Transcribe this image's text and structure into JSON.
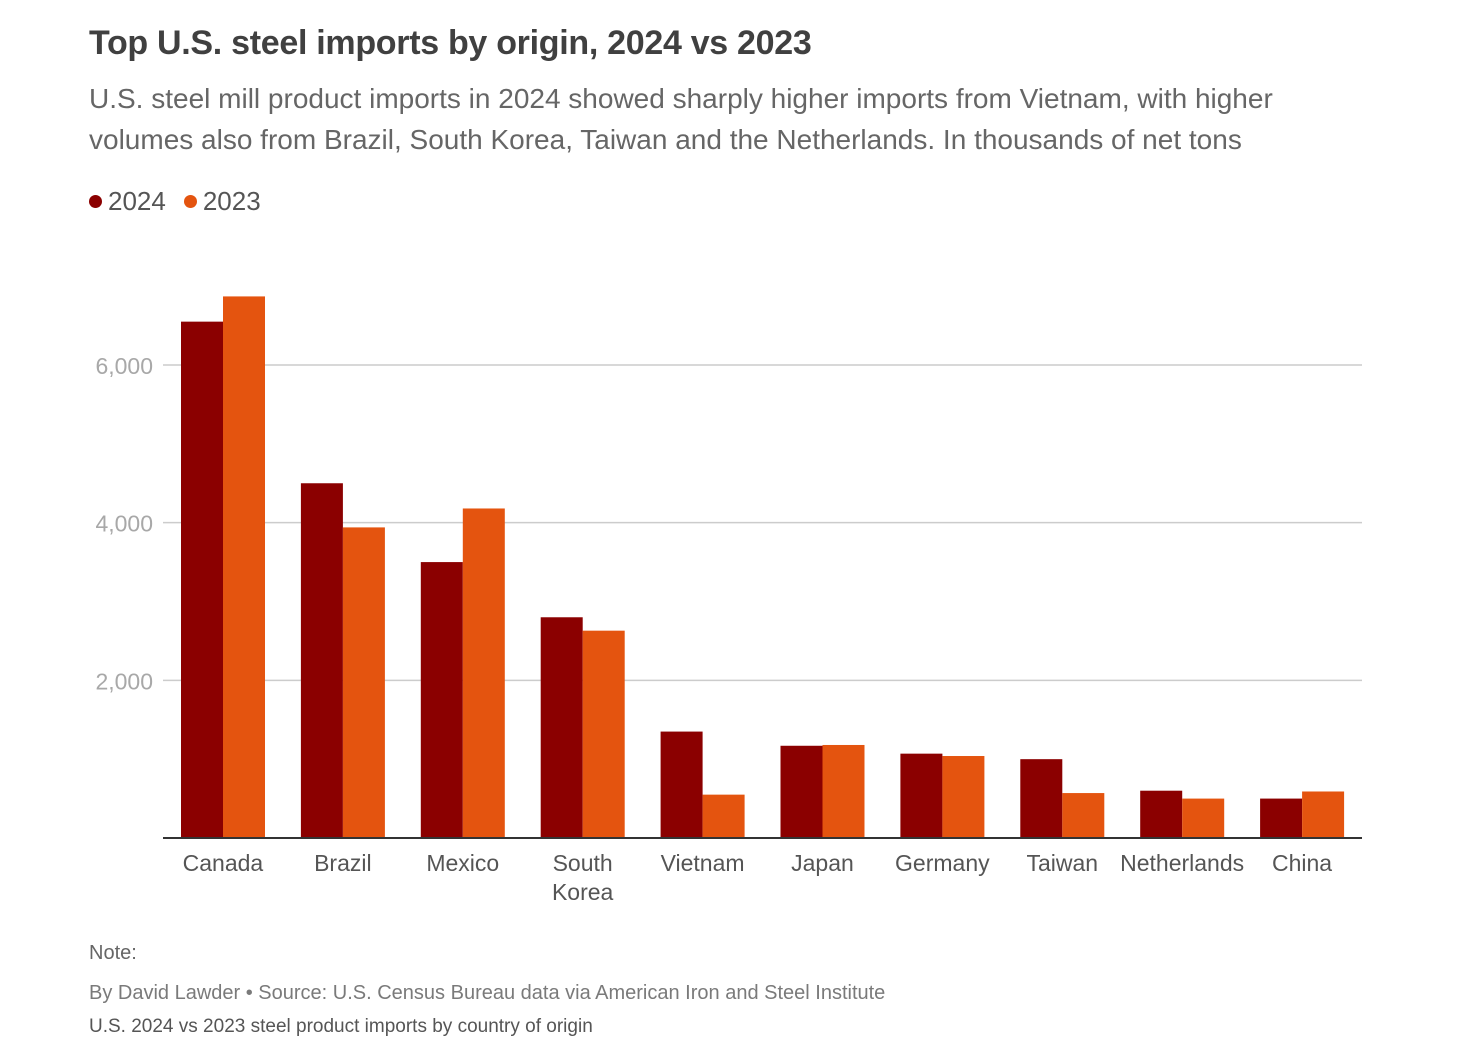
{
  "title": "Top U.S. steel imports by origin, 2024 vs 2023",
  "subtitle": "U.S. steel mill product imports in 2024 showed sharply higher imports from Vietnam, with higher volumes also from Brazil, South Korea, Taiwan and the Netherlands. In thousands of net tons",
  "legend": [
    {
      "label": "2024",
      "color": "#8b0000"
    },
    {
      "label": "2023",
      "color": "#e4540f"
    }
  ],
  "note": "Note:",
  "credit": "By David Lawder • Source: U.S. Census Bureau data via American Iron and Steel Institute",
  "caption": "U.S. 2024 vs 2023 steel product imports by country of origin",
  "chart_data": {
    "type": "bar",
    "categories": [
      [
        "Canada"
      ],
      [
        "Brazil"
      ],
      [
        "Mexico"
      ],
      [
        "South",
        "Korea"
      ],
      [
        "Vietnam"
      ],
      [
        "Japan"
      ],
      [
        "Germany"
      ],
      [
        "Taiwan"
      ],
      [
        "Netherlands"
      ],
      [
        "China"
      ]
    ],
    "series": [
      {
        "name": "2024",
        "color": "#8b0000",
        "values": [
          6550,
          4500,
          3500,
          2800,
          1350,
          1170,
          1070,
          1000,
          600,
          500
        ]
      },
      {
        "name": "2023",
        "color": "#e4540f",
        "values": [
          6870,
          3940,
          4180,
          2630,
          550,
          1180,
          1040,
          570,
          500,
          590
        ]
      }
    ],
    "yticks": [
      2000,
      4000,
      6000
    ],
    "ytick_labels": [
      "2,000",
      "4,000",
      "6,000"
    ],
    "ylim": [
      0,
      7000
    ],
    "grid": true,
    "legend_position": "top-left",
    "xlabel": "",
    "ylabel": ""
  }
}
